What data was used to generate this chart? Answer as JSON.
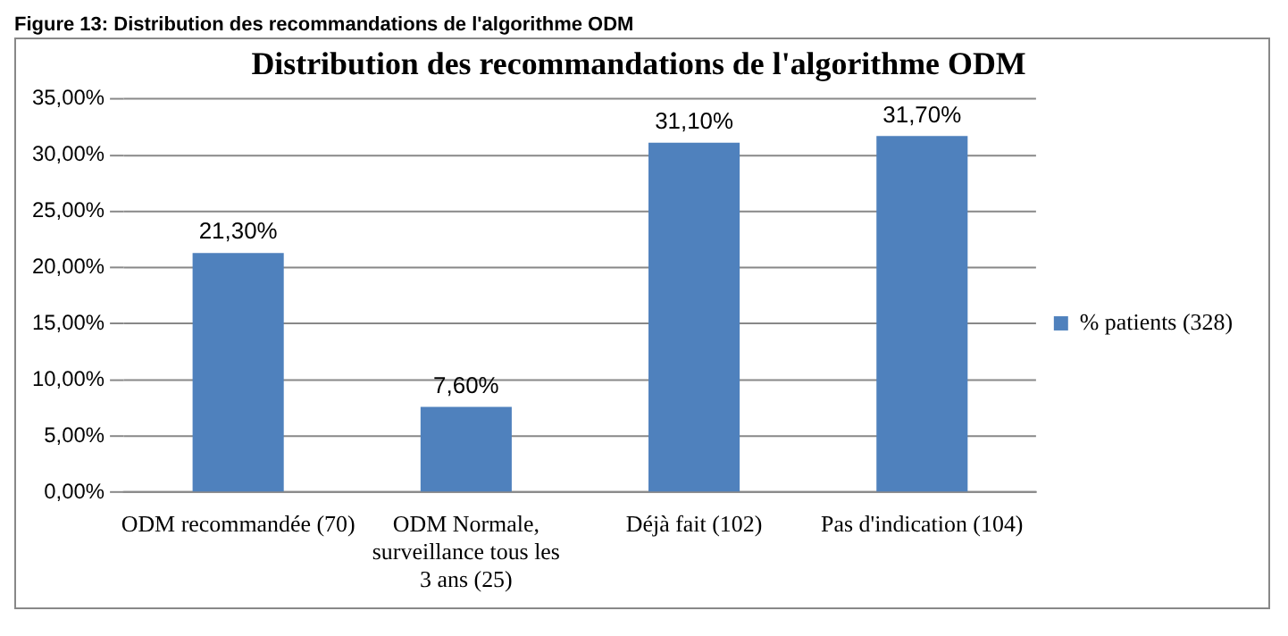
{
  "chart_data": {
    "type": "bar",
    "title": "Distribution des recommandations de l'algorithme ODM",
    "annotations": [
      "Figure 13: Distribution des recommandations de l'algorithme ODM"
    ],
    "categories": [
      "ODM recommandée (70)",
      "ODM Normale, surveillance tous les 3 ans (25)",
      "Déjà fait (102)",
      "Pas d'indication (104)"
    ],
    "series": [
      {
        "name": "% patients (328)",
        "color": "#4f81bd",
        "values": [
          21.3,
          7.6,
          31.1,
          31.7
        ],
        "value_labels": [
          "21,30%",
          "7,60%",
          "31,10%",
          "31,70%"
        ]
      }
    ],
    "ylim": [
      0,
      35
    ],
    "yticks": [
      {
        "value": 0,
        "label": "0,00%"
      },
      {
        "value": 5,
        "label": "5,00%"
      },
      {
        "value": 10,
        "label": "10,00%"
      },
      {
        "value": 15,
        "label": "15,00%"
      },
      {
        "value": 20,
        "label": "20,00%"
      },
      {
        "value": 25,
        "label": "25,00%"
      },
      {
        "value": 30,
        "label": "30,00%"
      },
      {
        "value": 35,
        "label": "35,00%"
      }
    ],
    "grid": "y",
    "legend": "right"
  }
}
